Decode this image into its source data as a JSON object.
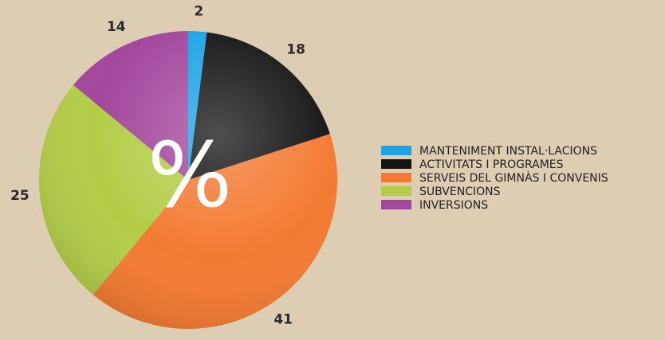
{
  "chart_data": {
    "type": "pie",
    "center_label": "%",
    "categories": [
      "MANTENIMENT INSTAL·LACIONS",
      "ACTIVITATS I PROGRAMES",
      "SERVEIS DEL GIMNÀS I CONVENIS",
      "SUBVENCIONS",
      "INVERSIONS"
    ],
    "values": [
      2,
      18,
      41,
      25,
      14
    ],
    "colors": [
      "#1ca3e6",
      "#141414",
      "#f37a32",
      "#b3cd48",
      "#a3479c"
    ]
  }
}
